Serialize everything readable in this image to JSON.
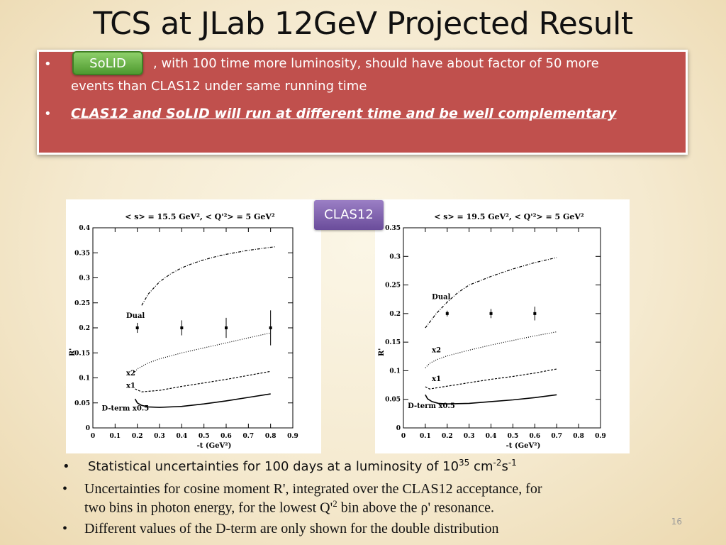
{
  "title": "TCS at JLab 12GeV Projected Result",
  "top_box": {
    "bullet1_button": "SoLID",
    "bullet1_text_line1": ", with 100 time more luminosity, should have about factor of 50  more",
    "bullet1_text_line2": "events than CLAS12 under same running time",
    "bullet2_text": "CLAS12 and SoLID will run at different time and be well complementary"
  },
  "badge": "CLAS12",
  "colors": {
    "red_box": "#c0504d",
    "solid_green": "#5fae3b",
    "clas_purple": "#7b5aab"
  },
  "chart_data": [
    {
      "type": "line",
      "title": "< s> = 15.5 GeV², < Q'²> = 5 GeV²",
      "xlabel": "-t (GeV²)",
      "ylabel": "R'",
      "xlim": [
        0,
        0.9
      ],
      "ylim": [
        0,
        0.4
      ],
      "xticks": [
        "0",
        "0.1",
        "0.2",
        "0.3",
        "0.4",
        "0.5",
        "0.6",
        "0.7",
        "0.8",
        "0.9"
      ],
      "yticks": [
        "0",
        "0.05",
        "0.1",
        "0.15",
        "0.2",
        "0.25",
        "0.3",
        "0.35",
        "0.4"
      ],
      "series": [
        {
          "name": "Dual",
          "style": "dashdot",
          "x": [
            0.22,
            0.25,
            0.3,
            0.35,
            0.4,
            0.45,
            0.5,
            0.55,
            0.6,
            0.65,
            0.7,
            0.75,
            0.8,
            0.82
          ],
          "y": [
            0.245,
            0.268,
            0.292,
            0.308,
            0.32,
            0.329,
            0.336,
            0.342,
            0.347,
            0.351,
            0.355,
            0.358,
            0.361,
            0.362
          ]
        },
        {
          "name": "x2",
          "style": "dotted",
          "x": [
            0.19,
            0.2,
            0.25,
            0.3,
            0.4,
            0.5,
            0.6,
            0.7,
            0.8
          ],
          "y": [
            0.112,
            0.118,
            0.13,
            0.138,
            0.15,
            0.16,
            0.17,
            0.18,
            0.19
          ]
        },
        {
          "name": "x1",
          "style": "dashed",
          "x": [
            0.19,
            0.22,
            0.3,
            0.4,
            0.5,
            0.6,
            0.7,
            0.8
          ],
          "y": [
            0.078,
            0.072,
            0.075,
            0.083,
            0.09,
            0.097,
            0.105,
            0.113
          ]
        },
        {
          "name": "D-term x0.5",
          "style": "solid",
          "x": [
            0.19,
            0.2,
            0.22,
            0.25,
            0.3,
            0.4,
            0.5,
            0.6,
            0.7,
            0.8
          ],
          "y": [
            0.058,
            0.05,
            0.045,
            0.042,
            0.041,
            0.043,
            0.048,
            0.054,
            0.061,
            0.068
          ]
        }
      ],
      "points": {
        "x": [
          0.2,
          0.4,
          0.6,
          0.8
        ],
        "y": [
          0.2,
          0.2,
          0.2,
          0.2
        ],
        "err": [
          0.01,
          0.015,
          0.02,
          0.035
        ]
      },
      "labels": [
        "Dual",
        "x2",
        "x1",
        "D-term x0.5"
      ]
    },
    {
      "type": "line",
      "title": "< s> = 19.5 GeV², < Q'²> = 5 GeV²",
      "xlabel": "-t (GeV²)",
      "ylabel": "R'",
      "xlim": [
        0,
        0.9
      ],
      "ylim": [
        0,
        0.35
      ],
      "xticks": [
        "0",
        "0.1",
        "0.2",
        "0.3",
        "0.4",
        "0.5",
        "0.6",
        "0.7",
        "0.8",
        "0.9"
      ],
      "yticks": [
        "0",
        "0.05",
        "0.1",
        "0.15",
        "0.2",
        "0.25",
        "0.3",
        "0.35"
      ],
      "series": [
        {
          "name": "Dual",
          "style": "dashdot",
          "x": [
            0.1,
            0.15,
            0.2,
            0.25,
            0.3,
            0.4,
            0.5,
            0.6,
            0.7
          ],
          "y": [
            0.175,
            0.2,
            0.22,
            0.237,
            0.25,
            0.265,
            0.278,
            0.289,
            0.298
          ]
        },
        {
          "name": "x2",
          "style": "dotted",
          "x": [
            0.1,
            0.12,
            0.15,
            0.2,
            0.3,
            0.4,
            0.5,
            0.6,
            0.7
          ],
          "y": [
            0.105,
            0.113,
            0.119,
            0.126,
            0.136,
            0.145,
            0.153,
            0.161,
            0.168
          ]
        },
        {
          "name": "x1",
          "style": "dashed",
          "x": [
            0.1,
            0.12,
            0.15,
            0.2,
            0.3,
            0.4,
            0.5,
            0.6,
            0.7
          ],
          "y": [
            0.072,
            0.068,
            0.07,
            0.073,
            0.079,
            0.085,
            0.09,
            0.096,
            0.103
          ]
        },
        {
          "name": "D-term x0.5",
          "style": "solid",
          "x": [
            0.1,
            0.11,
            0.13,
            0.16,
            0.2,
            0.3,
            0.4,
            0.5,
            0.6,
            0.7
          ],
          "y": [
            0.058,
            0.051,
            0.046,
            0.043,
            0.042,
            0.043,
            0.046,
            0.049,
            0.053,
            0.058
          ]
        }
      ],
      "points": {
        "x": [
          0.2,
          0.4,
          0.6
        ],
        "y": [
          0.2,
          0.2,
          0.2
        ],
        "err": [
          0.005,
          0.008,
          0.012
        ]
      },
      "labels": [
        "Dual",
        "x2",
        "x1",
        "D-term x0.5"
      ]
    }
  ],
  "bottom": {
    "b1_pre": "Statistical uncertainties for 100 days at a luminosity of 10",
    "b1_exp1": "35",
    "b1_mid": " cm",
    "b1_exp2": "-2",
    "b1_s": "s",
    "b1_exp3": "-1",
    "b2_line1": "Uncertainties for  cosine moment R', integrated over the CLAS12 acceptance, for",
    "b2_line2_pre": "two bins in photon energy, for the lowest Q'",
    "b2_line2_exp": "2",
    "b2_line2_post": " bin above the ρ' resonance.",
    "b3": "Different values of the D-term are only shown for the double distribution"
  },
  "page_number": "16"
}
